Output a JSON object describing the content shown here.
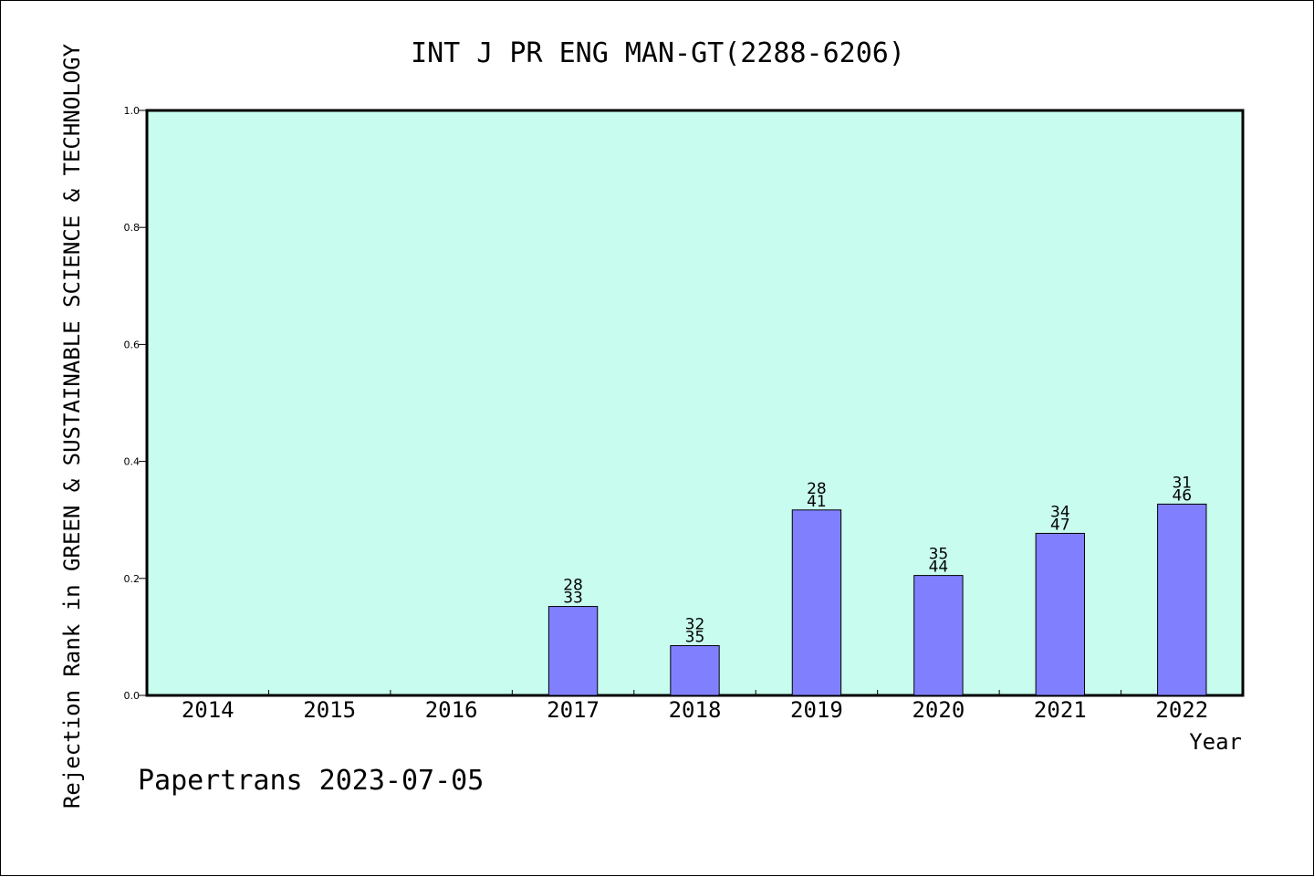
{
  "chart_data": {
    "type": "bar",
    "title": "INT J PR ENG MAN-GT(2288-6206)",
    "xlabel": "Year",
    "ylabel": "Rejection Rank in GREEN & SUSTAINABLE SCIENCE & TECHNOLOGY",
    "footer": "Papertrans 2023-07-05",
    "categories": [
      "2014",
      "2015",
      "2016",
      "2017",
      "2018",
      "2019",
      "2020",
      "2021",
      "2022"
    ],
    "values": [
      null,
      null,
      null,
      0.152,
      0.085,
      0.317,
      0.205,
      0.277,
      0.327
    ],
    "label_top": [
      "",
      "",
      "",
      "28",
      "32",
      "28",
      "35",
      "34",
      "31"
    ],
    "label_bottom": [
      "",
      "",
      "",
      "33",
      "35",
      "41",
      "44",
      "47",
      "46"
    ],
    "ylim": [
      0,
      1.0
    ],
    "yticks": [
      "0.0",
      "0.2",
      "0.4",
      "0.6",
      "0.8",
      "1.0"
    ],
    "grid": false,
    "colors": {
      "plot_background": "#c8fcee",
      "bar_fill": "#8080ff",
      "bar_stroke": "#000000"
    }
  }
}
